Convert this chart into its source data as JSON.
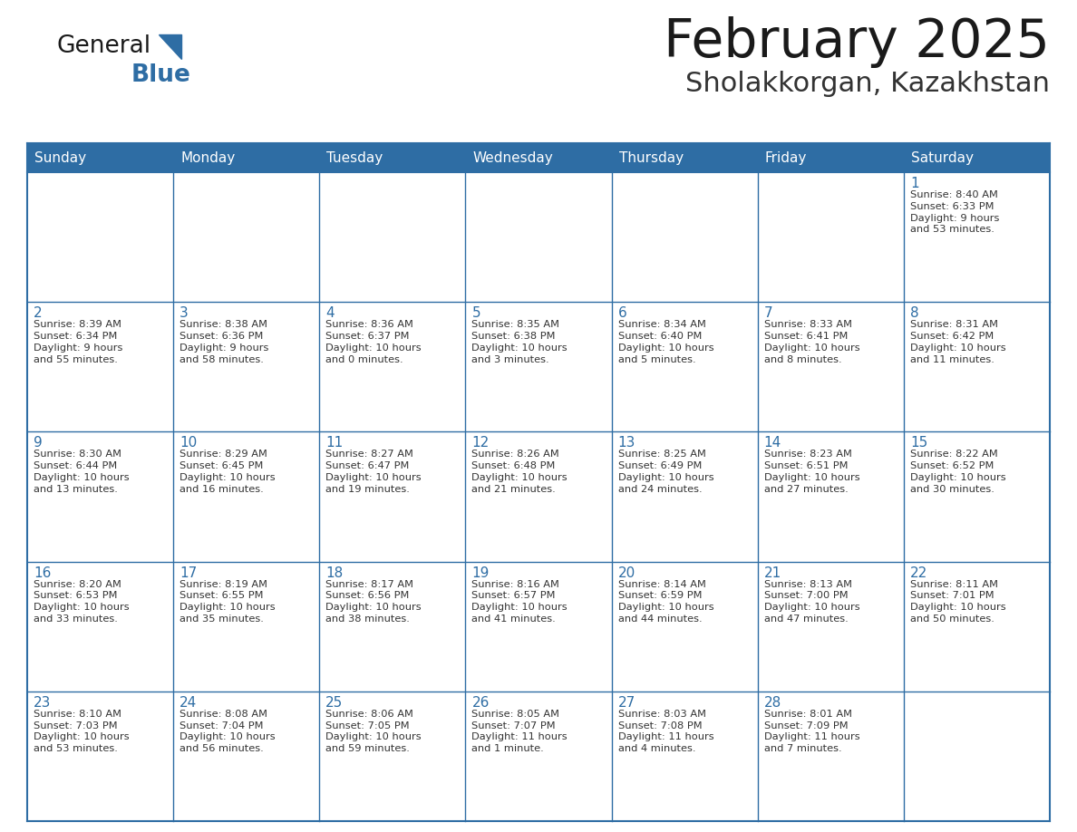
{
  "title": "February 2025",
  "subtitle": "Sholakkorgan, Kazakhstan",
  "header_bg": "#2E6DA4",
  "header_text": "#FFFFFF",
  "cell_bg": "#FFFFFF",
  "cell_bg_last": "#F5F5F5",
  "border_color": "#2E6DA4",
  "title_color": "#1a1a1a",
  "subtitle_color": "#333333",
  "day_number_color": "#2E6DA4",
  "text_color": "#333333",
  "logo_general_color": "#1a1a1a",
  "logo_blue_color": "#2E6DA4",
  "logo_triangle_color": "#2E6DA4",
  "days_of_week": [
    "Sunday",
    "Monday",
    "Tuesday",
    "Wednesday",
    "Thursday",
    "Friday",
    "Saturday"
  ],
  "weeks": [
    [
      {
        "day": null,
        "info": null
      },
      {
        "day": null,
        "info": null
      },
      {
        "day": null,
        "info": null
      },
      {
        "day": null,
        "info": null
      },
      {
        "day": null,
        "info": null
      },
      {
        "day": null,
        "info": null
      },
      {
        "day": 1,
        "info": "Sunrise: 8:40 AM\nSunset: 6:33 PM\nDaylight: 9 hours\nand 53 minutes."
      }
    ],
    [
      {
        "day": 2,
        "info": "Sunrise: 8:39 AM\nSunset: 6:34 PM\nDaylight: 9 hours\nand 55 minutes."
      },
      {
        "day": 3,
        "info": "Sunrise: 8:38 AM\nSunset: 6:36 PM\nDaylight: 9 hours\nand 58 minutes."
      },
      {
        "day": 4,
        "info": "Sunrise: 8:36 AM\nSunset: 6:37 PM\nDaylight: 10 hours\nand 0 minutes."
      },
      {
        "day": 5,
        "info": "Sunrise: 8:35 AM\nSunset: 6:38 PM\nDaylight: 10 hours\nand 3 minutes."
      },
      {
        "day": 6,
        "info": "Sunrise: 8:34 AM\nSunset: 6:40 PM\nDaylight: 10 hours\nand 5 minutes."
      },
      {
        "day": 7,
        "info": "Sunrise: 8:33 AM\nSunset: 6:41 PM\nDaylight: 10 hours\nand 8 minutes."
      },
      {
        "day": 8,
        "info": "Sunrise: 8:31 AM\nSunset: 6:42 PM\nDaylight: 10 hours\nand 11 minutes."
      }
    ],
    [
      {
        "day": 9,
        "info": "Sunrise: 8:30 AM\nSunset: 6:44 PM\nDaylight: 10 hours\nand 13 minutes."
      },
      {
        "day": 10,
        "info": "Sunrise: 8:29 AM\nSunset: 6:45 PM\nDaylight: 10 hours\nand 16 minutes."
      },
      {
        "day": 11,
        "info": "Sunrise: 8:27 AM\nSunset: 6:47 PM\nDaylight: 10 hours\nand 19 minutes."
      },
      {
        "day": 12,
        "info": "Sunrise: 8:26 AM\nSunset: 6:48 PM\nDaylight: 10 hours\nand 21 minutes."
      },
      {
        "day": 13,
        "info": "Sunrise: 8:25 AM\nSunset: 6:49 PM\nDaylight: 10 hours\nand 24 minutes."
      },
      {
        "day": 14,
        "info": "Sunrise: 8:23 AM\nSunset: 6:51 PM\nDaylight: 10 hours\nand 27 minutes."
      },
      {
        "day": 15,
        "info": "Sunrise: 8:22 AM\nSunset: 6:52 PM\nDaylight: 10 hours\nand 30 minutes."
      }
    ],
    [
      {
        "day": 16,
        "info": "Sunrise: 8:20 AM\nSunset: 6:53 PM\nDaylight: 10 hours\nand 33 minutes."
      },
      {
        "day": 17,
        "info": "Sunrise: 8:19 AM\nSunset: 6:55 PM\nDaylight: 10 hours\nand 35 minutes."
      },
      {
        "day": 18,
        "info": "Sunrise: 8:17 AM\nSunset: 6:56 PM\nDaylight: 10 hours\nand 38 minutes."
      },
      {
        "day": 19,
        "info": "Sunrise: 8:16 AM\nSunset: 6:57 PM\nDaylight: 10 hours\nand 41 minutes."
      },
      {
        "day": 20,
        "info": "Sunrise: 8:14 AM\nSunset: 6:59 PM\nDaylight: 10 hours\nand 44 minutes."
      },
      {
        "day": 21,
        "info": "Sunrise: 8:13 AM\nSunset: 7:00 PM\nDaylight: 10 hours\nand 47 minutes."
      },
      {
        "day": 22,
        "info": "Sunrise: 8:11 AM\nSunset: 7:01 PM\nDaylight: 10 hours\nand 50 minutes."
      }
    ],
    [
      {
        "day": 23,
        "info": "Sunrise: 8:10 AM\nSunset: 7:03 PM\nDaylight: 10 hours\nand 53 minutes."
      },
      {
        "day": 24,
        "info": "Sunrise: 8:08 AM\nSunset: 7:04 PM\nDaylight: 10 hours\nand 56 minutes."
      },
      {
        "day": 25,
        "info": "Sunrise: 8:06 AM\nSunset: 7:05 PM\nDaylight: 10 hours\nand 59 minutes."
      },
      {
        "day": 26,
        "info": "Sunrise: 8:05 AM\nSunset: 7:07 PM\nDaylight: 11 hours\nand 1 minute."
      },
      {
        "day": 27,
        "info": "Sunrise: 8:03 AM\nSunset: 7:08 PM\nDaylight: 11 hours\nand 4 minutes."
      },
      {
        "day": 28,
        "info": "Sunrise: 8:01 AM\nSunset: 7:09 PM\nDaylight: 11 hours\nand 7 minutes."
      },
      {
        "day": null,
        "info": null
      }
    ]
  ]
}
